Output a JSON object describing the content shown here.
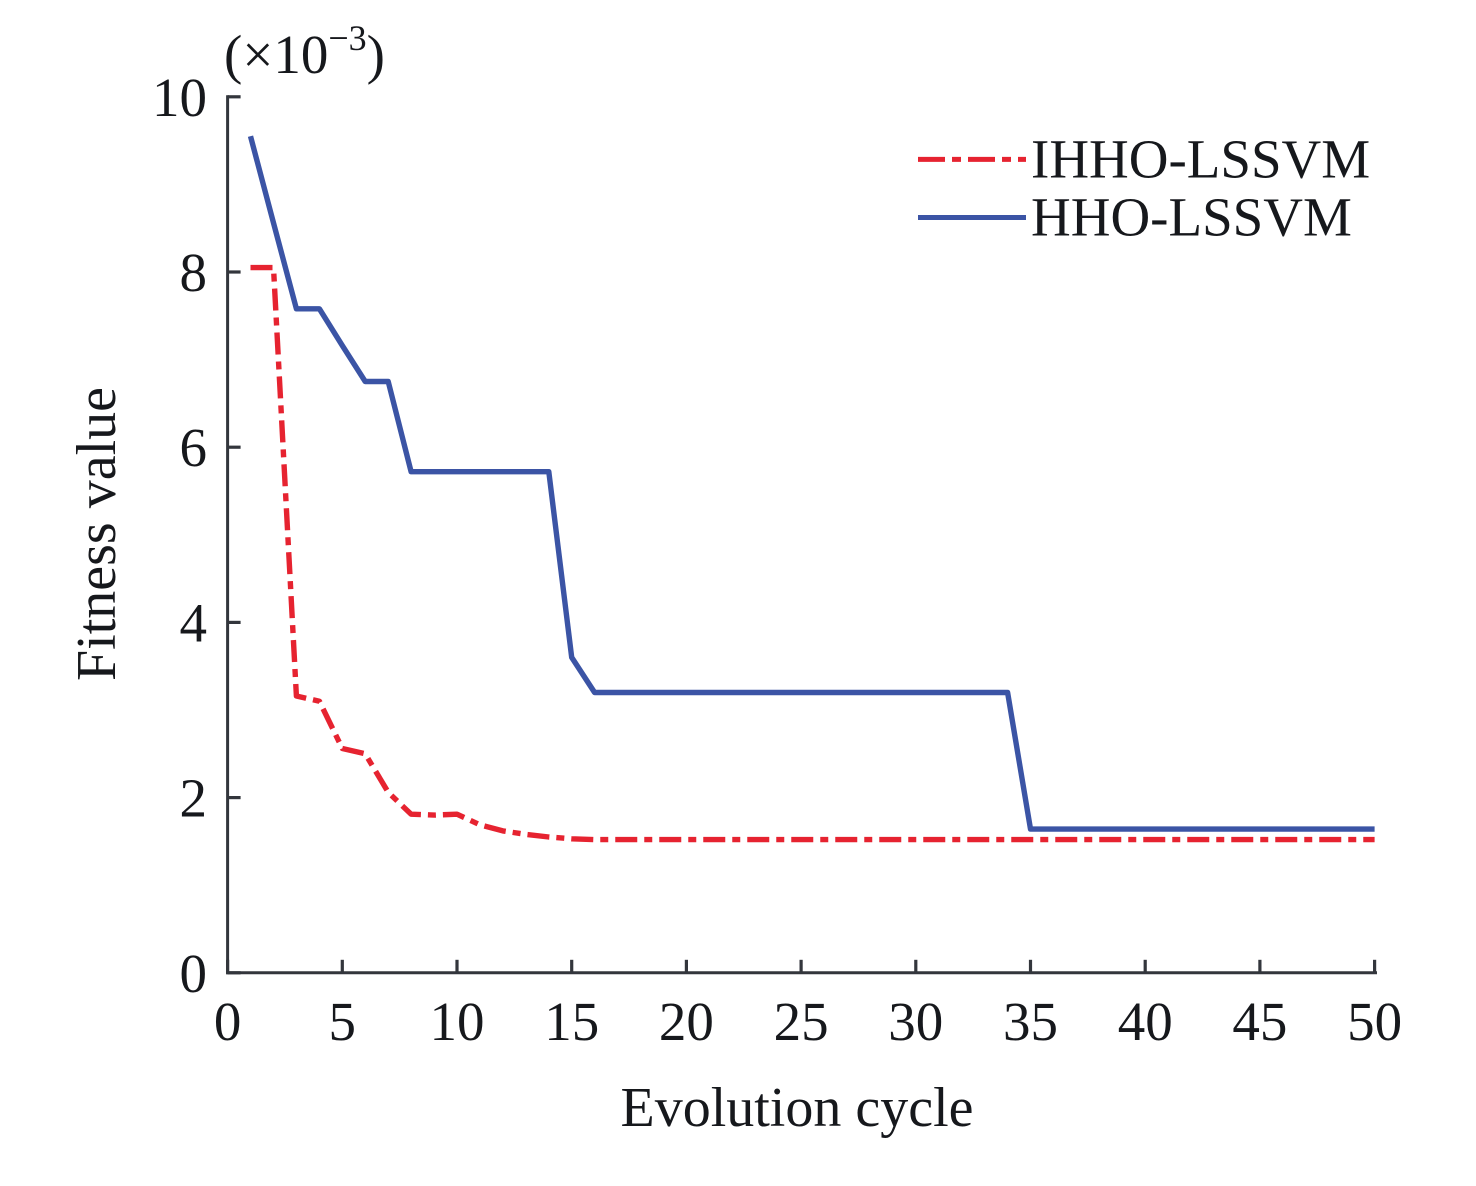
{
  "figure": {
    "background": "#ffffff",
    "text_color": "#16181c",
    "axis_color": "#33363c"
  },
  "legend": {
    "position": "top-right",
    "items": [
      {
        "label": "IHHO-LSSVM",
        "color": "#e62330",
        "line_style": "dash-dot"
      },
      {
        "label": "HHO-LSSVM",
        "color": "#3b54a5",
        "line_style": "solid"
      }
    ]
  },
  "chart_data": {
    "type": "line",
    "title": "",
    "xlabel": "Evolution cycle",
    "ylabel": "Fitness value",
    "y_scale_prefix": "(×10",
    "y_scale_exponent": "−3",
    "y_scale_suffix": ")",
    "y_scale": "×10⁻³",
    "xlim": [
      0,
      50
    ],
    "ylim": [
      0,
      10
    ],
    "xticks": [
      0,
      5,
      10,
      15,
      20,
      25,
      30,
      35,
      40,
      45,
      50
    ],
    "yticks": [
      0,
      2,
      4,
      6,
      8,
      10
    ],
    "grid": false,
    "legend_position": "top-right",
    "x": [
      1,
      2,
      3,
      4,
      5,
      6,
      7,
      8,
      9,
      10,
      11,
      12,
      13,
      14,
      15,
      16,
      17,
      18,
      19,
      20,
      21,
      22,
      23,
      24,
      25,
      26,
      27,
      28,
      29,
      30,
      31,
      32,
      33,
      34,
      35,
      36,
      37,
      38,
      39,
      40,
      41,
      42,
      43,
      44,
      45,
      46,
      47,
      48,
      49,
      50
    ],
    "series": [
      {
        "name": "IHHO-LSSVM",
        "color": "#e62330",
        "line_style": "dash-dot",
        "values": [
          8.05,
          8.05,
          3.16,
          3.1,
          2.56,
          2.5,
          2.06,
          1.81,
          1.8,
          1.81,
          1.69,
          1.62,
          1.58,
          1.55,
          1.53,
          1.52,
          1.52,
          1.52,
          1.52,
          1.52,
          1.52,
          1.52,
          1.52,
          1.52,
          1.52,
          1.52,
          1.52,
          1.52,
          1.52,
          1.52,
          1.52,
          1.52,
          1.52,
          1.52,
          1.52,
          1.52,
          1.52,
          1.52,
          1.52,
          1.52,
          1.52,
          1.52,
          1.52,
          1.52,
          1.52,
          1.52,
          1.52,
          1.52,
          1.52,
          1.52
        ]
      },
      {
        "name": "HHO-LSSVM",
        "color": "#3b54a5",
        "line_style": "solid",
        "values": [
          9.55,
          8.56,
          7.58,
          7.58,
          7.16,
          6.75,
          6.75,
          5.72,
          5.72,
          5.72,
          5.72,
          5.72,
          5.72,
          5.72,
          3.6,
          3.2,
          3.2,
          3.2,
          3.2,
          3.2,
          3.2,
          3.2,
          3.2,
          3.2,
          3.2,
          3.2,
          3.2,
          3.2,
          3.2,
          3.2,
          3.2,
          3.2,
          3.2,
          3.2,
          1.64,
          1.64,
          1.64,
          1.64,
          1.64,
          1.64,
          1.64,
          1.64,
          1.64,
          1.64,
          1.64,
          1.64,
          1.64,
          1.64,
          1.64,
          1.64
        ]
      }
    ]
  }
}
